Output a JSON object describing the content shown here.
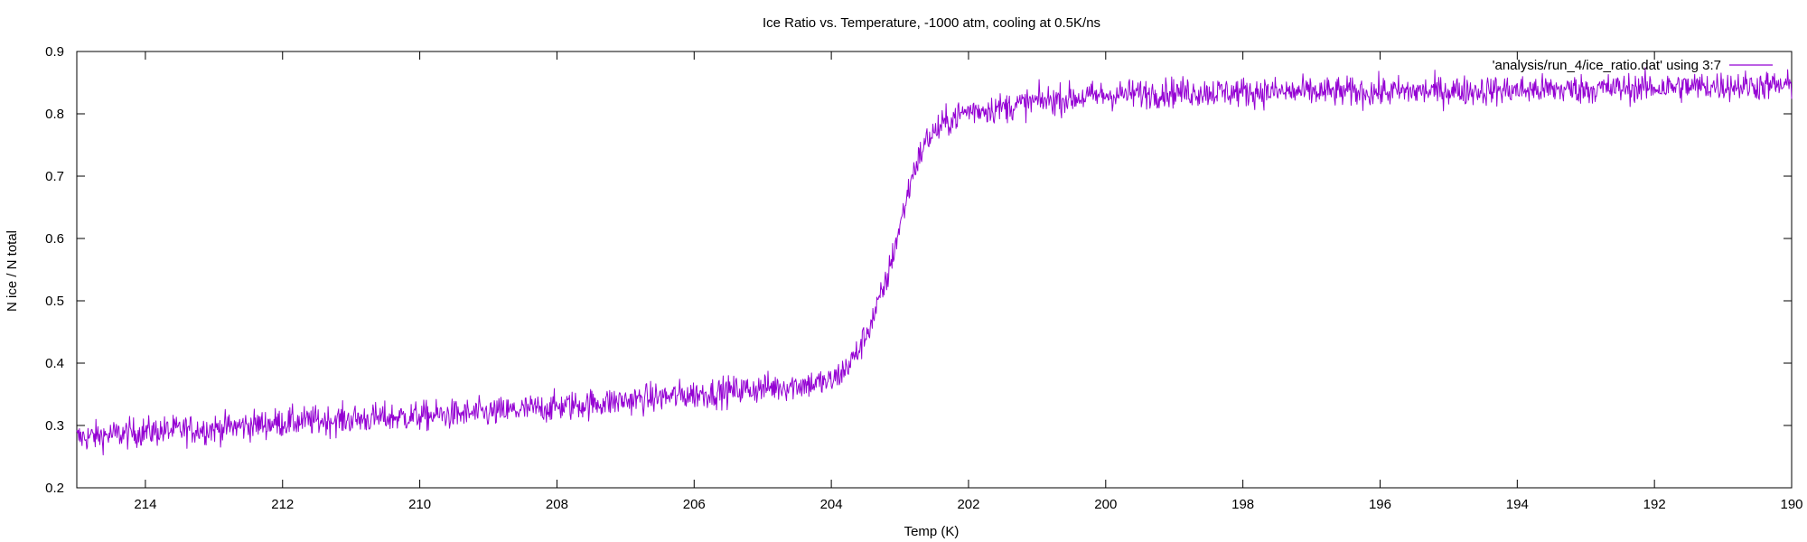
{
  "chart_data": {
    "type": "line",
    "title": "Ice Ratio vs. Temperature, -1000 atm, cooling at 0.5K/ns",
    "xlabel": "Temp (K)",
    "ylabel": "N ice / N total",
    "xlim": [
      215,
      190
    ],
    "ylim": [
      0.2,
      0.9
    ],
    "x_reversed": true,
    "xticks": [
      214,
      212,
      210,
      208,
      206,
      204,
      202,
      200,
      198,
      196,
      194,
      192,
      190
    ],
    "xtick_labels": [
      "214",
      "212",
      "210",
      "208",
      "206",
      "204",
      "202",
      "200",
      "198",
      "196",
      "194",
      "192",
      "190"
    ],
    "yticks": [
      0.2,
      0.3,
      0.4,
      0.5,
      0.6,
      0.7,
      0.8,
      0.9
    ],
    "ytick_labels": [
      "0.2",
      "0.3",
      "0.4",
      "0.5",
      "0.6",
      "0.7",
      "0.8",
      "0.9"
    ],
    "grid": false,
    "legend_position": "top-right",
    "noise_amplitude": 0.012,
    "series": [
      {
        "name": "'analysis/run_4/ice_ratio.dat' using 3:7",
        "color": "#9400d3",
        "x": [
          215,
          214,
          213,
          212,
          211,
          210,
          209,
          208,
          207,
          206,
          205,
          204.5,
          204,
          203.8,
          203.6,
          203.4,
          203.2,
          203,
          202.8,
          202.6,
          202.4,
          202.2,
          202,
          201.5,
          201,
          200.5,
          200,
          199,
          198,
          197,
          196,
          195,
          194,
          193,
          192,
          191,
          190
        ],
        "y": [
          0.28,
          0.29,
          0.295,
          0.305,
          0.31,
          0.315,
          0.32,
          0.33,
          0.34,
          0.35,
          0.36,
          0.365,
          0.37,
          0.39,
          0.42,
          0.47,
          0.53,
          0.62,
          0.71,
          0.76,
          0.78,
          0.795,
          0.805,
          0.81,
          0.82,
          0.825,
          0.83,
          0.835,
          0.835,
          0.835,
          0.835,
          0.837,
          0.838,
          0.84,
          0.842,
          0.845,
          0.845
        ]
      }
    ]
  }
}
